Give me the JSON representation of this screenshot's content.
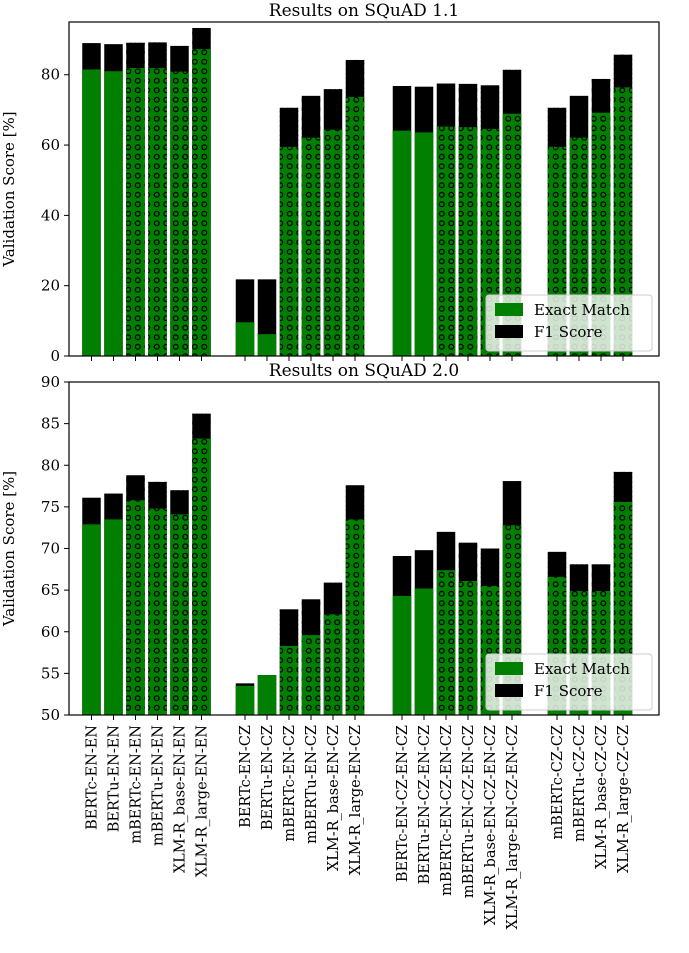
{
  "chart_data": [
    {
      "type": "bar",
      "title": "Results on SQuAD 1.1",
      "ylabel": "Validation Score [%]",
      "xlabel": "",
      "ylim": [
        0,
        95
      ],
      "yticks": [
        0,
        20,
        40,
        60,
        80
      ],
      "legend": {
        "position": "bottom-right",
        "entries": [
          "Exact Match",
          "F1 Score"
        ]
      },
      "series_colors": {
        "Exact Match": "#007f00",
        "F1 Score": "#000000"
      },
      "groups": [
        {
          "bars": [
            {
              "label": "BERTc-EN-EN",
              "em": 81.5,
              "f1": 89.0,
              "dotted": false
            },
            {
              "label": "BERTu-EN-EN",
              "em": 81.0,
              "f1": 88.7,
              "dotted": false
            },
            {
              "label": "mBERTc-EN-EN",
              "em": 81.9,
              "f1": 89.1,
              "dotted": true
            },
            {
              "label": "mBERTu-EN-EN",
              "em": 81.9,
              "f1": 89.2,
              "dotted": true
            },
            {
              "label": "XLM-R_base-EN-EN",
              "em": 80.9,
              "f1": 88.2,
              "dotted": true
            },
            {
              "label": "XLM-R_large-EN-EN",
              "em": 87.3,
              "f1": 93.3,
              "dotted": true
            }
          ]
        },
        {
          "bars": [
            {
              "label": "BERTc-EN-CZ",
              "em": 9.6,
              "f1": 21.8,
              "dotted": false
            },
            {
              "label": "BERTu-EN-CZ",
              "em": 6.2,
              "f1": 21.8,
              "dotted": false
            },
            {
              "label": "mBERTc-EN-CZ",
              "em": 59.5,
              "f1": 70.6,
              "dotted": true
            },
            {
              "label": "mBERTu-EN-CZ",
              "em": 62.1,
              "f1": 74.0,
              "dotted": true
            },
            {
              "label": "XLM-R_base-EN-CZ",
              "em": 64.4,
              "f1": 75.9,
              "dotted": true
            },
            {
              "label": "XLM-R_large-EN-CZ",
              "em": 73.7,
              "f1": 84.2,
              "dotted": true
            }
          ]
        },
        {
          "bars": [
            {
              "label": "BERTc-EN-CZ-EN-CZ",
              "em": 64.1,
              "f1": 76.8,
              "dotted": false
            },
            {
              "label": "BERTu-EN-CZ-EN-CZ",
              "em": 63.6,
              "f1": 76.6,
              "dotted": false
            },
            {
              "label": "mBERTc-EN-CZ-EN-CZ",
              "em": 65.3,
              "f1": 77.5,
              "dotted": true
            },
            {
              "label": "mBERTu-EN-CZ-EN-CZ",
              "em": 65.1,
              "f1": 77.4,
              "dotted": true
            },
            {
              "label": "XLM-R_base-EN-CZ-EN-CZ",
              "em": 64.6,
              "f1": 77.0,
              "dotted": true
            },
            {
              "label": "XLM-R_large-EN-CZ-EN-CZ",
              "em": 68.9,
              "f1": 81.4,
              "dotted": true
            }
          ]
        },
        {
          "bars": [
            {
              "label": "mBERTc-CZ-CZ",
              "em": 59.5,
              "f1": 70.6,
              "dotted": true
            },
            {
              "label": "mBERTu-CZ-CZ",
              "em": 62.1,
              "f1": 74.0,
              "dotted": true
            },
            {
              "label": "XLM-R_base-CZ-CZ",
              "em": 69.2,
              "f1": 78.8,
              "dotted": true
            },
            {
              "label": "XLM-R_large-CZ-CZ",
              "em": 76.4,
              "f1": 85.7,
              "dotted": true
            }
          ]
        }
      ]
    },
    {
      "type": "bar",
      "title": "Results on SQuAD 2.0",
      "ylabel": "Validation Score [%]",
      "xlabel": "",
      "ylim": [
        50,
        90
      ],
      "yticks": [
        50,
        55,
        60,
        65,
        70,
        75,
        80,
        85,
        90
      ],
      "legend": {
        "position": "bottom-right",
        "entries": [
          "Exact Match",
          "F1 Score"
        ]
      },
      "series_colors": {
        "Exact Match": "#007f00",
        "F1 Score": "#000000"
      },
      "groups": [
        {
          "bars": [
            {
              "label": "BERTc-EN-EN",
              "em": 72.9,
              "f1": 76.1,
              "dotted": false
            },
            {
              "label": "BERTu-EN-EN",
              "em": 73.5,
              "f1": 76.6,
              "dotted": false
            },
            {
              "label": "mBERTc-EN-EN",
              "em": 75.8,
              "f1": 78.8,
              "dotted": true
            },
            {
              "label": "mBERTu-EN-EN",
              "em": 74.8,
              "f1": 78.0,
              "dotted": true
            },
            {
              "label": "XLM-R_base-EN-EN",
              "em": 74.1,
              "f1": 77.0,
              "dotted": true
            },
            {
              "label": "XLM-R_large-EN-EN",
              "em": 83.2,
              "f1": 86.2,
              "dotted": true
            }
          ]
        },
        {
          "bars": [
            {
              "label": "BERTc-EN-CZ",
              "em": 53.5,
              "f1": 53.8,
              "dotted": false
            },
            {
              "label": "BERTu-EN-CZ",
              "em": 54.8,
              "f1": 54.8,
              "dotted": false
            },
            {
              "label": "mBERTc-EN-CZ",
              "em": 58.3,
              "f1": 62.7,
              "dotted": true
            },
            {
              "label": "mBERTu-EN-CZ",
              "em": 59.6,
              "f1": 63.9,
              "dotted": true
            },
            {
              "label": "XLM-R_base-EN-CZ",
              "em": 62.1,
              "f1": 65.9,
              "dotted": true
            },
            {
              "label": "XLM-R_large-EN-CZ",
              "em": 73.5,
              "f1": 77.6,
              "dotted": true
            }
          ]
        },
        {
          "bars": [
            {
              "label": "BERTc-EN-CZ-EN-CZ",
              "em": 64.3,
              "f1": 69.1,
              "dotted": false
            },
            {
              "label": "BERTu-EN-CZ-EN-CZ",
              "em": 65.2,
              "f1": 69.8,
              "dotted": false
            },
            {
              "label": "mBERTc-EN-CZ-EN-CZ",
              "em": 67.4,
              "f1": 72.0,
              "dotted": true
            },
            {
              "label": "mBERTu-EN-CZ-EN-CZ",
              "em": 66.1,
              "f1": 70.7,
              "dotted": true
            },
            {
              "label": "XLM-R_base-EN-CZ-EN-CZ",
              "em": 65.5,
              "f1": 70.0,
              "dotted": true
            },
            {
              "label": "XLM-R_large-EN-CZ-EN-CZ",
              "em": 72.8,
              "f1": 78.1,
              "dotted": true
            }
          ]
        },
        {
          "bars": [
            {
              "label": "mBERTc-CZ-CZ",
              "em": 66.6,
              "f1": 69.6,
              "dotted": true
            },
            {
              "label": "mBERTu-CZ-CZ",
              "em": 64.9,
              "f1": 68.1,
              "dotted": true
            },
            {
              "label": "XLM-R_base-CZ-CZ",
              "em": 64.9,
              "f1": 68.1,
              "dotted": true
            },
            {
              "label": "XLM-R_large-CZ-CZ",
              "em": 75.6,
              "f1": 79.2,
              "dotted": true
            }
          ]
        }
      ]
    }
  ]
}
